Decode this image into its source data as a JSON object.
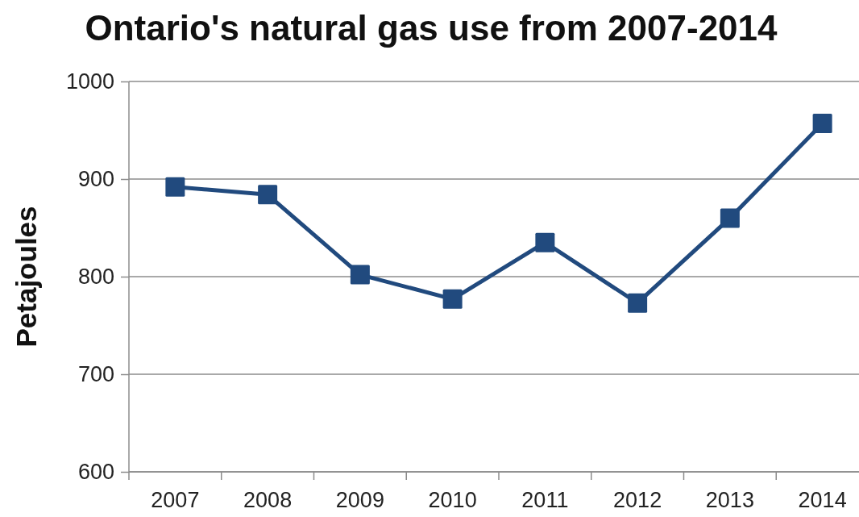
{
  "chart_data": {
    "type": "line",
    "title": "Ontario's natural gas use from 2007-2014",
    "ylabel": "Petajoules",
    "categories": [
      "2007",
      "2008",
      "2009",
      "2010",
      "2011",
      "2012",
      "2013",
      "2014"
    ],
    "series": [
      {
        "color": "#214a7e",
        "values": [
          892,
          884,
          802,
          777,
          835,
          773,
          860,
          957
        ]
      }
    ],
    "ylim": [
      600,
      1000
    ],
    "yticks": [
      600,
      700,
      800,
      900,
      1000
    ],
    "grid": "y",
    "marker": "square",
    "line_style": "solid"
  }
}
